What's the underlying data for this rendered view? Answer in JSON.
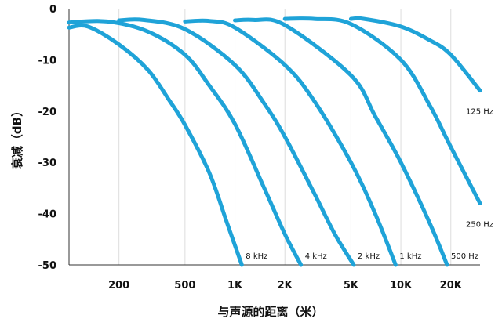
{
  "chart_data": {
    "type": "line",
    "title": "",
    "xlabel": "与声源的距离（米）",
    "ylabel": "衰减（dB）",
    "x_scale": "log",
    "x_ticks": [
      {
        "value": 200,
        "label": "200"
      },
      {
        "value": 500,
        "label": "500"
      },
      {
        "value": 1000,
        "label": "1K"
      },
      {
        "value": 2000,
        "label": "2K"
      },
      {
        "value": 5000,
        "label": "5K"
      },
      {
        "value": 10000,
        "label": "10K"
      },
      {
        "value": 20000,
        "label": "20K"
      }
    ],
    "y_ticks": [
      {
        "value": 0,
        "label": "0"
      },
      {
        "value": -10,
        "label": "-10"
      },
      {
        "value": -20,
        "label": "-20"
      },
      {
        "value": -30,
        "label": "-30"
      },
      {
        "value": -40,
        "label": "-40"
      },
      {
        "value": -50,
        "label": "-50"
      }
    ],
    "xlim": [
      100,
      30000
    ],
    "ylim": [
      -50,
      0
    ],
    "grid": "vertical lines at x ticks",
    "legend": "none",
    "colors": {
      "line": "#1fa3d8",
      "grid": "#dddddd",
      "axis": "#333333"
    },
    "series": [
      {
        "name": "8 kHz",
        "points": [
          [
            100,
            -3.7
          ],
          [
            130,
            -3.5
          ],
          [
            200,
            -7
          ],
          [
            300,
            -12
          ],
          [
            400,
            -17.8
          ],
          [
            500,
            -22.7
          ],
          [
            700,
            -32
          ],
          [
            900,
            -42
          ],
          [
            1100,
            -50
          ]
        ]
      },
      {
        "name": "4 kHz",
        "points": [
          [
            100,
            -2.7
          ],
          [
            170,
            -2.5
          ],
          [
            300,
            -4.5
          ],
          [
            500,
            -9
          ],
          [
            700,
            -15
          ],
          [
            1000,
            -22.5
          ],
          [
            1500,
            -35
          ],
          [
            2000,
            -44
          ],
          [
            2500,
            -50
          ]
        ]
      },
      {
        "name": "2 kHz",
        "points": [
          [
            200,
            -2.3
          ],
          [
            280,
            -2.2
          ],
          [
            500,
            -4
          ],
          [
            1000,
            -11
          ],
          [
            1500,
            -18.5
          ],
          [
            2000,
            -25
          ],
          [
            3000,
            -36
          ],
          [
            4000,
            -44
          ],
          [
            5200,
            -50
          ]
        ]
      },
      {
        "name": "1 kHz",
        "points": [
          [
            500,
            -2.5
          ],
          [
            700,
            -2.4
          ],
          [
            1000,
            -3.7
          ],
          [
            2000,
            -11
          ],
          [
            3000,
            -18
          ],
          [
            5000,
            -30
          ],
          [
            7000,
            -40
          ],
          [
            9300,
            -50
          ]
        ]
      },
      {
        "name": "500 Hz",
        "points": [
          [
            1000,
            -2.3
          ],
          [
            1300,
            -2.2
          ],
          [
            2000,
            -3.2
          ],
          [
            5000,
            -13
          ],
          [
            7000,
            -21
          ],
          [
            10000,
            -30
          ],
          [
            15000,
            -42
          ],
          [
            19000,
            -50
          ]
        ]
      },
      {
        "name": "250 Hz",
        "points": [
          [
            2000,
            -2
          ],
          [
            3000,
            -2
          ],
          [
            5000,
            -3
          ],
          [
            10000,
            -10
          ],
          [
            15000,
            -19
          ],
          [
            20000,
            -27
          ],
          [
            30000,
            -38
          ]
        ]
      },
      {
        "name": "125 Hz",
        "points": [
          [
            5000,
            -2
          ],
          [
            6000,
            -2
          ],
          [
            10000,
            -3.5
          ],
          [
            15000,
            -6.2
          ],
          [
            20000,
            -9
          ],
          [
            30000,
            -16
          ]
        ]
      }
    ]
  }
}
